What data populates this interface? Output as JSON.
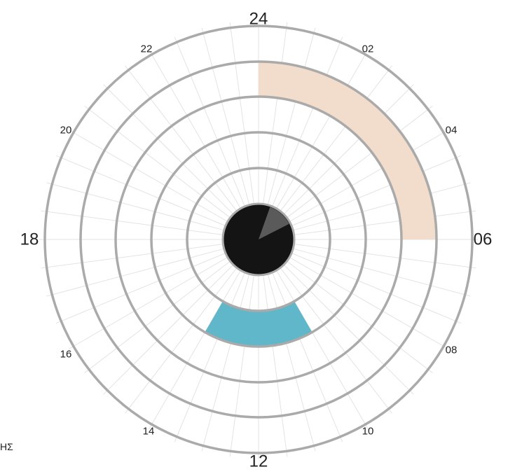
{
  "clock": {
    "hour_labels": {
      "24": "24",
      "02": "02",
      "04": "04",
      "06": "06",
      "08": "08",
      "10": "10",
      "12": "12",
      "14": "14",
      "16": "16",
      "18": "18",
      "20": "20",
      "22": "22"
    },
    "rings": 5,
    "segments": [
      {
        "name": "peach-segment",
        "from_hour": 0,
        "to_hour": 6,
        "inner_ring": 3,
        "outer_ring": 4,
        "color": "#f2dccb"
      },
      {
        "name": "blue-segment",
        "from_hour": 10,
        "to_hour": 14,
        "inner_ring": 1,
        "outer_ring": 2,
        "color": "#5fb7c9"
      }
    ],
    "center_disc": {
      "color": "#141414",
      "wedge_color": "#5a5a5a",
      "wedge_from_hour": 1.3,
      "wedge_to_hour": 4.2
    },
    "colors": {
      "ring": "#aaaaaa",
      "spoke": "#e3e3e3",
      "text": "#222222"
    }
  },
  "footer": {
    "text": "ΗΣ"
  }
}
